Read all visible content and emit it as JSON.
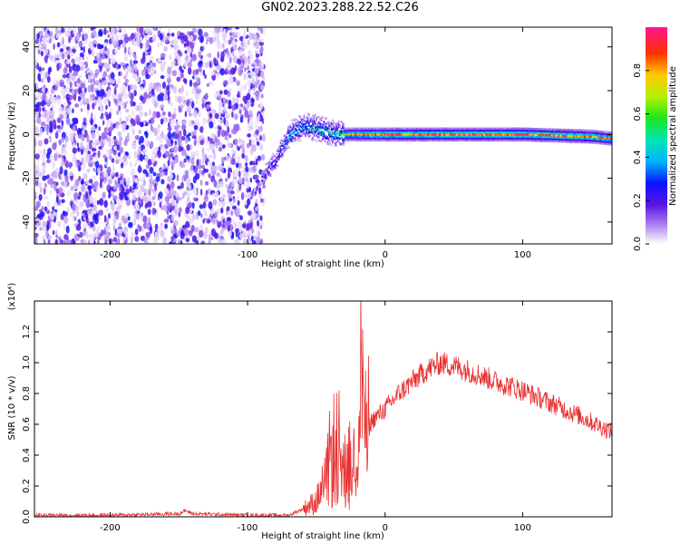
{
  "title": "GN02.2023.288.22.52.C26",
  "chart_data": [
    {
      "type": "heatmap",
      "title": "",
      "xlabel": "Height of straight line (km)",
      "ylabel": "Frequency (Hz)",
      "xlim": [
        -255,
        165
      ],
      "ylim": [
        -50,
        49
      ],
      "xticks": [
        -200,
        -100,
        0,
        100
      ],
      "yticks": [
        -40,
        -20,
        0,
        20,
        40
      ],
      "colorbar": {
        "label": "Normalized spectral amplitude",
        "range": [
          0,
          1
        ],
        "ticks": [
          "0.0",
          "0.2",
          "0.4",
          "0.6",
          "0.8"
        ],
        "tick_values": [
          0,
          0.2,
          0.4,
          0.6,
          0.8
        ]
      },
      "description_values": {
        "noise_region_x": [
          -255,
          -88
        ],
        "noise_amplitude": [
          0.02,
          0.28
        ],
        "signal_track": [
          {
            "x": -90,
            "y": -20,
            "amp": 0.25
          },
          {
            "x": -80,
            "y": -12,
            "amp": 0.3
          },
          {
            "x": -70,
            "y": 0,
            "amp": 0.45
          },
          {
            "x": -60,
            "y": 4,
            "amp": 0.5
          },
          {
            "x": -50,
            "y": 3,
            "amp": 0.55
          },
          {
            "x": -40,
            "y": 1,
            "amp": 0.6
          },
          {
            "x": -30,
            "y": 0,
            "amp": 0.75
          },
          {
            "x": -20,
            "y": 0,
            "amp": 0.85
          },
          {
            "x": 0,
            "y": 0,
            "amp": 0.9
          },
          {
            "x": 50,
            "y": 0,
            "amp": 0.95
          },
          {
            "x": 100,
            "y": 0,
            "amp": 0.95
          },
          {
            "x": 150,
            "y": -1,
            "amp": 0.9
          },
          {
            "x": 165,
            "y": -2,
            "amp": 0.85
          }
        ]
      }
    },
    {
      "type": "line",
      "title": "",
      "xlabel": "Height of straight line (km)",
      "ylabel": "SNR (10 * v/v)",
      "y_multiplier": "(x10⁴)",
      "xlim": [
        -255,
        165
      ],
      "ylim": [
        0,
        1.4
      ],
      "xticks": [
        -200,
        -100,
        0,
        100
      ],
      "yticks": [
        "0.0",
        "0.2",
        "0.4",
        "0.6",
        "0.8",
        "1.0",
        "1.2"
      ],
      "ytick_values": [
        0,
        0.2,
        0.4,
        0.6,
        0.8,
        1.0,
        1.2
      ],
      "color": "#e83232",
      "series": [
        {
          "x": [
            -255,
            -200,
            -150,
            -145,
            -140,
            -100,
            -70,
            -60,
            -50,
            -45,
            -40,
            -35,
            -30,
            -25,
            -20,
            -17,
            -15,
            -10,
            0,
            10,
            20,
            30,
            40,
            50,
            60,
            80,
            100,
            120,
            140,
            165
          ],
          "values": [
            0.01,
            0.01,
            0.02,
            0.04,
            0.02,
            0.01,
            0.01,
            0.05,
            0.1,
            0.2,
            0.38,
            0.5,
            0.3,
            0.35,
            0.45,
            1.25,
            0.48,
            0.62,
            0.7,
            0.8,
            0.88,
            0.95,
            1.0,
            0.98,
            0.95,
            0.88,
            0.82,
            0.74,
            0.66,
            0.55
          ]
        }
      ]
    }
  ]
}
